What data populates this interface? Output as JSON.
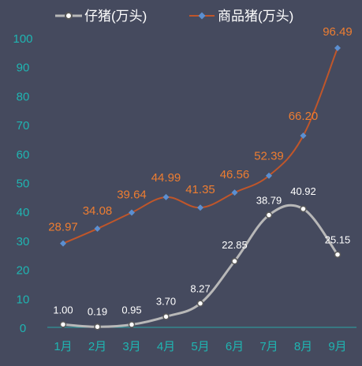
{
  "chart_data": {
    "type": "line",
    "categories": [
      "1月",
      "2月",
      "3月",
      "4月",
      "5月",
      "6月",
      "7月",
      "8月",
      "9月"
    ],
    "ylim": [
      0,
      100
    ],
    "yticks": [
      0,
      10,
      20,
      30,
      40,
      50,
      60,
      70,
      80,
      90,
      100
    ],
    "grid": false,
    "legend_position": "top",
    "series": [
      {
        "name": "仔猪(万头)",
        "color": "#b8b8b8",
        "marker": "circle-open",
        "smooth": true,
        "values": [
          1.0,
          0.19,
          0.95,
          3.7,
          8.27,
          22.85,
          38.79,
          40.92,
          25.15
        ],
        "labels": [
          "1.00",
          "0.19",
          "0.95",
          "3.70",
          "8.27",
          "22.85",
          "38.79",
          "40.92",
          "25.15"
        ],
        "label_color": "#ffffff"
      },
      {
        "name": "商品猪(万头)",
        "color": "#c0562a",
        "marker": "diamond",
        "marker_color": "#5b8fd1",
        "smooth": true,
        "values": [
          28.97,
          34.08,
          39.64,
          44.99,
          41.35,
          46.56,
          52.39,
          66.2,
          96.49
        ],
        "labels": [
          "28.97",
          "34.08",
          "39.64",
          "44.99",
          "41.35",
          "46.56",
          "52.39",
          "66.20",
          "96.49"
        ],
        "label_color": "#ed7d31"
      }
    ],
    "colors": {
      "background": "#454a5e",
      "axis_text": "#1fb5b2",
      "axis_line": "#2aa7a5",
      "legend_text": "#ffffff"
    }
  }
}
